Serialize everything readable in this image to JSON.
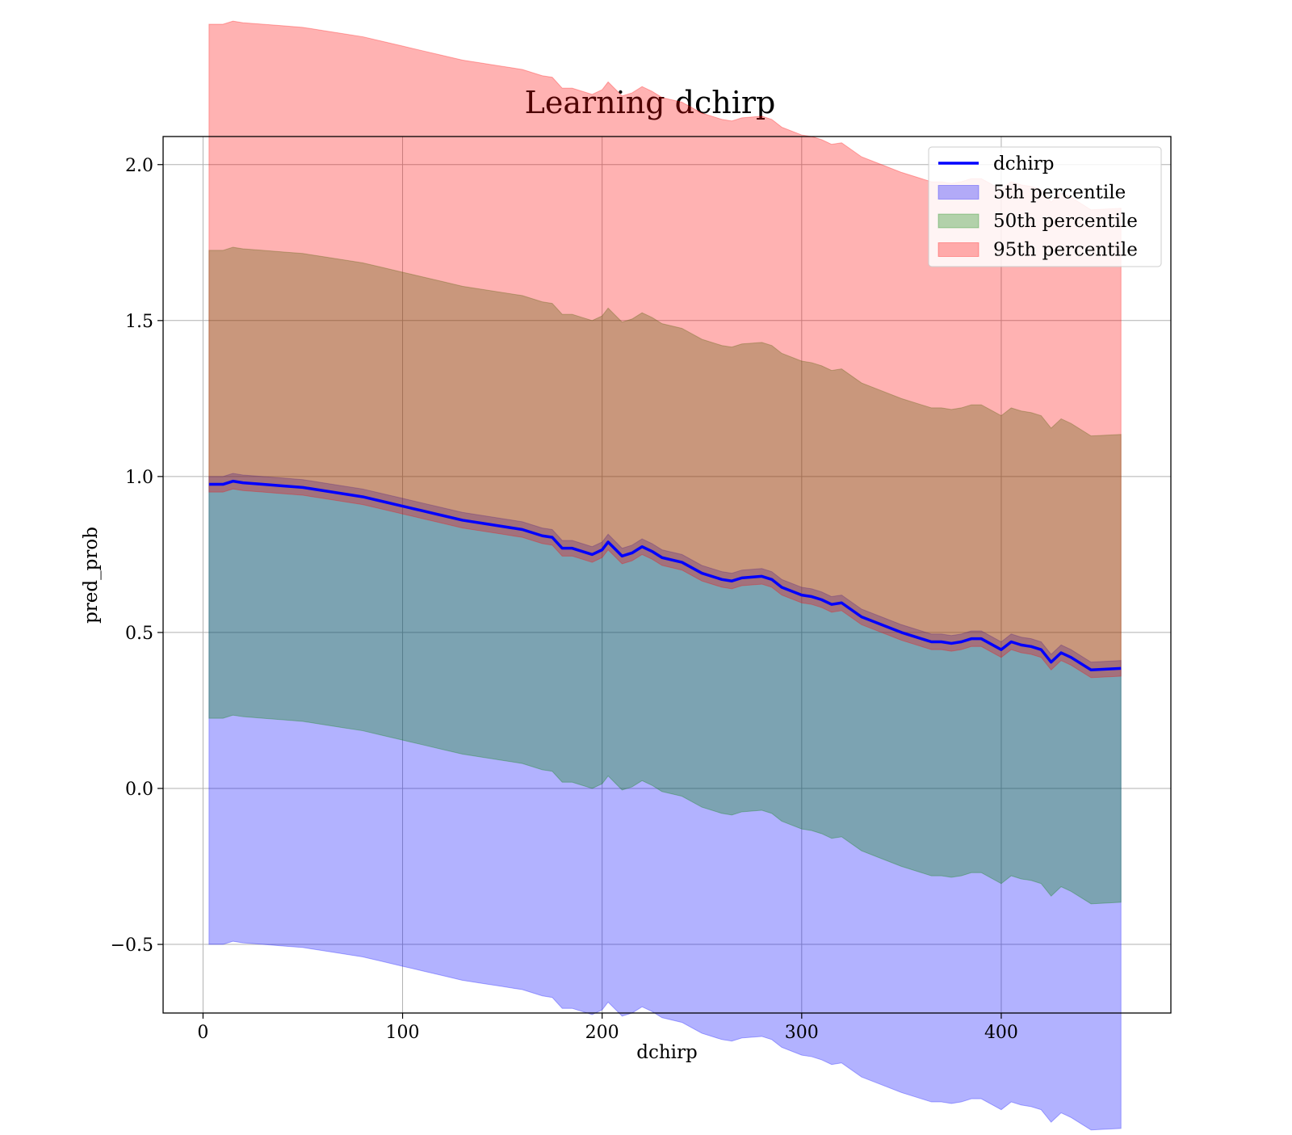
{
  "chart_data": {
    "type": "line",
    "title": "Learning dchirp",
    "xlabel": "dchirp",
    "ylabel": "pred_prob",
    "xlim": [
      -20,
      485
    ],
    "ylim": [
      -0.72,
      2.09
    ],
    "xticks": [
      0,
      100,
      200,
      300,
      400
    ],
    "xtick_labels": [
      "0",
      "100",
      "200",
      "300",
      "400"
    ],
    "yticks": [
      -0.5,
      0.0,
      0.5,
      1.0,
      1.5,
      2.0
    ],
    "ytick_labels": [
      "−0.5",
      "0.0",
      "0.5",
      "1.0",
      "1.5",
      "2.0"
    ],
    "grid": true,
    "legend_position": "top-right",
    "legend": [
      {
        "label": "dchirp",
        "kind": "line",
        "color": "#0000ff"
      },
      {
        "label": "5th percentile",
        "kind": "patch",
        "color": "#0000ff"
      },
      {
        "label": "50th percentile",
        "kind": "patch",
        "color": "#008000"
      },
      {
        "label": "95th percentile",
        "kind": "patch",
        "color": "#ff0000"
      }
    ],
    "x": [
      3,
      10,
      15,
      20,
      30,
      40,
      50,
      60,
      70,
      80,
      90,
      100,
      110,
      120,
      130,
      140,
      150,
      160,
      170,
      175,
      180,
      185,
      190,
      195,
      200,
      203,
      210,
      215,
      220,
      225,
      230,
      240,
      250,
      260,
      265,
      270,
      280,
      285,
      290,
      300,
      305,
      310,
      315,
      320,
      330,
      340,
      350,
      360,
      365,
      370,
      375,
      380,
      385,
      390,
      400,
      405,
      410,
      415,
      420,
      425,
      430,
      435,
      445,
      460
    ],
    "series": [
      {
        "name": "dchirp",
        "values": [
          0.975,
          0.975,
          0.985,
          0.98,
          0.975,
          0.97,
          0.965,
          0.955,
          0.945,
          0.935,
          0.92,
          0.905,
          0.89,
          0.875,
          0.86,
          0.85,
          0.84,
          0.83,
          0.81,
          0.805,
          0.77,
          0.77,
          0.76,
          0.75,
          0.765,
          0.79,
          0.745,
          0.755,
          0.775,
          0.76,
          0.74,
          0.725,
          0.69,
          0.67,
          0.665,
          0.675,
          0.68,
          0.67,
          0.645,
          0.62,
          0.615,
          0.605,
          0.59,
          0.595,
          0.55,
          0.525,
          0.5,
          0.48,
          0.47,
          0.47,
          0.465,
          0.47,
          0.48,
          0.48,
          0.445,
          0.47,
          0.46,
          0.455,
          0.445,
          0.405,
          0.435,
          0.42,
          0.38,
          0.385
        ]
      },
      {
        "name": "5th percentile",
        "values": [
          0.25,
          0.25,
          0.26,
          0.255,
          0.25,
          0.245,
          0.24,
          0.23,
          0.22,
          0.21,
          0.195,
          0.18,
          0.165,
          0.15,
          0.135,
          0.125,
          0.115,
          0.105,
          0.085,
          0.08,
          0.045,
          0.045,
          0.035,
          0.025,
          0.04,
          0.065,
          0.02,
          0.03,
          0.05,
          0.035,
          0.015,
          0.0,
          -0.035,
          -0.055,
          -0.06,
          -0.05,
          -0.045,
          -0.055,
          -0.08,
          -0.105,
          -0.11,
          -0.12,
          -0.135,
          -0.13,
          -0.175,
          -0.2,
          -0.225,
          -0.245,
          -0.255,
          -0.255,
          -0.26,
          -0.255,
          -0.245,
          -0.245,
          -0.28,
          -0.255,
          -0.265,
          -0.27,
          -0.28,
          -0.32,
          -0.29,
          -0.305,
          -0.345,
          -0.34
        ]
      },
      {
        "name": "50th percentile",
        "values": [
          0.975,
          0.975,
          0.985,
          0.98,
          0.975,
          0.97,
          0.965,
          0.955,
          0.945,
          0.935,
          0.92,
          0.905,
          0.89,
          0.875,
          0.86,
          0.85,
          0.84,
          0.83,
          0.81,
          0.805,
          0.77,
          0.77,
          0.76,
          0.75,
          0.765,
          0.79,
          0.745,
          0.755,
          0.775,
          0.76,
          0.74,
          0.725,
          0.69,
          0.67,
          0.665,
          0.675,
          0.68,
          0.67,
          0.645,
          0.62,
          0.615,
          0.605,
          0.59,
          0.595,
          0.55,
          0.525,
          0.5,
          0.48,
          0.47,
          0.47,
          0.465,
          0.47,
          0.48,
          0.48,
          0.445,
          0.47,
          0.46,
          0.455,
          0.445,
          0.405,
          0.435,
          0.42,
          0.38,
          0.385
        ]
      },
      {
        "name": "95th percentile",
        "values": [
          1.7,
          1.7,
          1.71,
          1.705,
          1.7,
          1.695,
          1.69,
          1.68,
          1.67,
          1.66,
          1.645,
          1.63,
          1.615,
          1.6,
          1.585,
          1.575,
          1.565,
          1.555,
          1.535,
          1.53,
          1.495,
          1.495,
          1.485,
          1.475,
          1.49,
          1.515,
          1.47,
          1.48,
          1.5,
          1.485,
          1.465,
          1.45,
          1.415,
          1.395,
          1.39,
          1.4,
          1.405,
          1.395,
          1.37,
          1.345,
          1.34,
          1.33,
          1.315,
          1.32,
          1.275,
          1.25,
          1.225,
          1.205,
          1.195,
          1.195,
          1.19,
          1.195,
          1.205,
          1.205,
          1.17,
          1.195,
          1.185,
          1.18,
          1.17,
          1.13,
          1.16,
          1.145,
          1.105,
          1.11
        ]
      }
    ]
  }
}
